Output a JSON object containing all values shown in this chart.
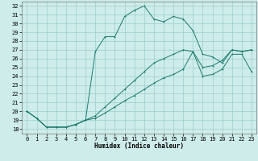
{
  "xlabel": "Humidex (Indice chaleur)",
  "bg_color": "#cdecea",
  "grid_color": "#9bcfcc",
  "line_color": "#1e7b6e",
  "xlim": [
    -0.5,
    23.5
  ],
  "ylim": [
    17.5,
    32.5
  ],
  "xticks": [
    0,
    1,
    2,
    3,
    4,
    5,
    6,
    7,
    8,
    9,
    10,
    11,
    12,
    13,
    14,
    15,
    16,
    17,
    18,
    19,
    20,
    21,
    22,
    23
  ],
  "yticks": [
    18,
    19,
    20,
    21,
    22,
    23,
    24,
    25,
    26,
    27,
    28,
    29,
    30,
    31,
    32
  ],
  "series1_x": [
    0,
    1,
    2,
    3,
    4,
    5,
    6,
    7,
    8,
    9,
    10,
    11,
    12,
    13,
    14,
    15,
    16,
    17,
    18,
    19,
    20,
    21,
    22,
    23
  ],
  "series1_y": [
    20.0,
    19.2,
    18.2,
    18.2,
    18.2,
    18.5,
    19.0,
    26.8,
    28.5,
    28.5,
    30.8,
    31.5,
    32.0,
    30.5,
    30.2,
    30.8,
    30.5,
    29.2,
    26.5,
    26.2,
    25.5,
    27.0,
    26.8,
    27.0
  ],
  "series2_x": [
    0,
    1,
    2,
    3,
    4,
    5,
    6,
    7,
    8,
    9,
    10,
    11,
    12,
    13,
    14,
    15,
    16,
    17,
    18,
    19,
    20,
    21,
    22,
    23
  ],
  "series2_y": [
    20.0,
    19.2,
    18.2,
    18.2,
    18.2,
    18.5,
    19.0,
    19.5,
    20.5,
    21.5,
    22.5,
    23.5,
    24.5,
    25.5,
    26.0,
    26.5,
    27.0,
    26.8,
    25.0,
    25.2,
    25.8,
    27.0,
    26.8,
    27.0
  ],
  "series3_x": [
    0,
    1,
    2,
    3,
    4,
    5,
    6,
    7,
    8,
    9,
    10,
    11,
    12,
    13,
    14,
    15,
    16,
    17,
    18,
    19,
    20,
    21,
    22,
    23
  ],
  "series3_y": [
    20.0,
    19.2,
    18.2,
    18.2,
    18.2,
    18.5,
    19.0,
    19.2,
    19.8,
    20.5,
    21.2,
    21.8,
    22.5,
    23.2,
    23.8,
    24.2,
    24.8,
    26.8,
    24.0,
    24.2,
    24.8,
    26.5,
    26.5,
    24.5
  ]
}
